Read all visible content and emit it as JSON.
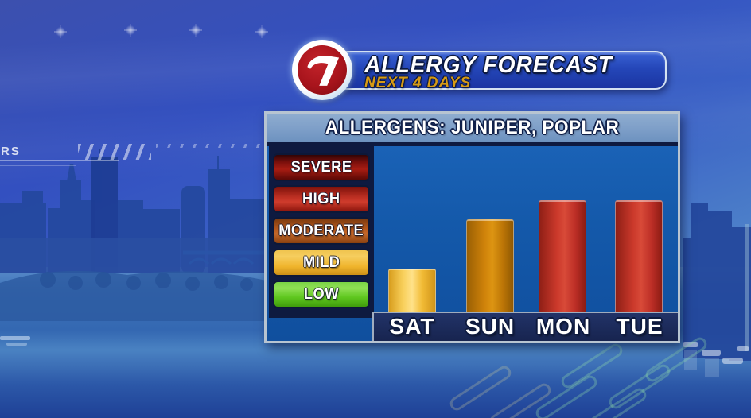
{
  "header": {
    "station_number": "7",
    "title": "ALLERGY FORECAST",
    "subtitle": "NEXT 4 DAYS"
  },
  "panel": {
    "allergens_title": "ALLERGENS:  JUNIPER, POPLAR"
  },
  "legend": {
    "items": [
      {
        "label": "SEVERE",
        "color": "#a81d13"
      },
      {
        "label": "HIGH",
        "color": "#cb392b"
      },
      {
        "label": "MODERATE",
        "color": "#bd5f24"
      },
      {
        "label": "MILD",
        "color": "#f2bb35"
      },
      {
        "label": "LOW",
        "color": "#63c823"
      }
    ]
  },
  "chart_data": {
    "type": "bar",
    "title": "ALLERGENS: JUNIPER, POPLAR",
    "categories": [
      "SAT",
      "SUN",
      "MON",
      "TUE"
    ],
    "values": [
      2,
      3,
      4,
      4
    ],
    "value_labels": [
      "MILD",
      "MODERATE",
      "HIGH",
      "HIGH"
    ],
    "scale": [
      "LOW",
      "MILD",
      "MODERATE",
      "HIGH",
      "SEVERE"
    ],
    "bar_colors": [
      "#f2bb35",
      "#cf820a",
      "#cb392b",
      "#cb392b"
    ],
    "xlabel": "",
    "ylabel": "",
    "ylim": [
      0,
      5
    ],
    "grid": false,
    "legend_position": "left"
  },
  "background": {
    "decor_text": "RS"
  }
}
